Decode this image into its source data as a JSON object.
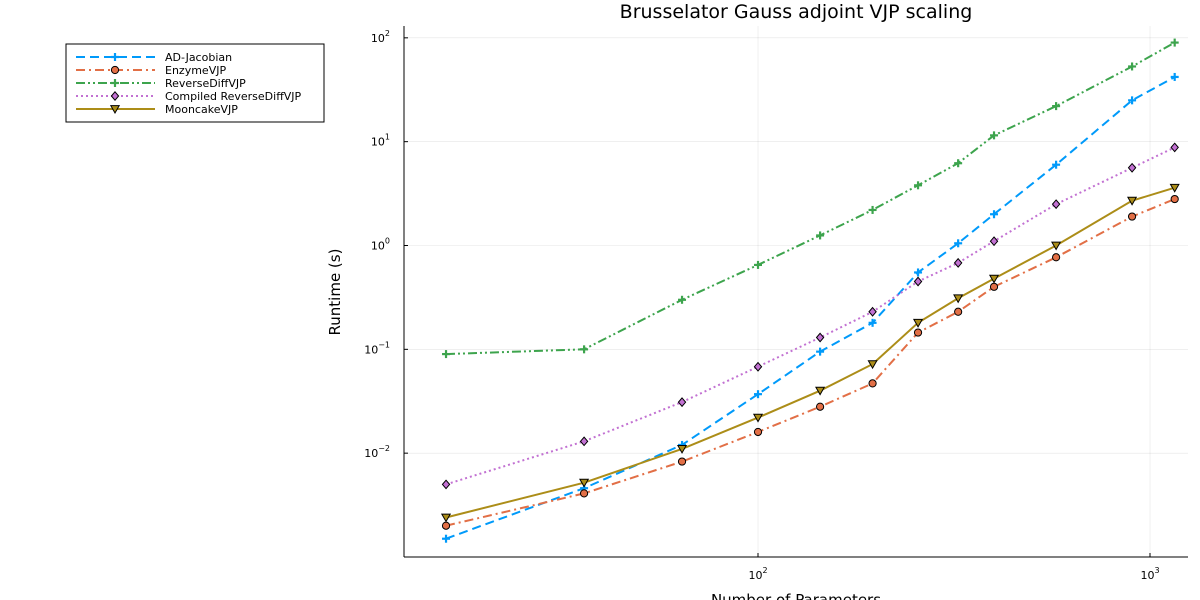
{
  "chart_data": {
    "type": "line",
    "title": "Brusselator Gauss adjoint VJP scaling",
    "xlabel": "Number of Parameters",
    "ylabel": "Runtime (s)",
    "xscale": "log",
    "yscale": "log",
    "xlim": [
      12.5,
      1250
    ],
    "ylim": [
      0.001,
      130
    ],
    "x_ticks": [
      {
        "value": 100,
        "base": "10",
        "exp": "2"
      },
      {
        "value": 1000,
        "base": "10",
        "exp": "3"
      }
    ],
    "y_ticks": [
      {
        "value": 0.01,
        "base": "10",
        "exp": "−2"
      },
      {
        "value": 0.1,
        "base": "10",
        "exp": "−1"
      },
      {
        "value": 1,
        "base": "10",
        "exp": "0"
      },
      {
        "value": 10,
        "base": "10",
        "exp": "1"
      },
      {
        "value": 100,
        "base": "10",
        "exp": "2"
      }
    ],
    "grid": true,
    "legend_position": "outer top-left",
    "x": [
      16,
      36,
      64,
      100,
      144,
      196,
      256,
      324,
      400,
      576,
      900,
      1156
    ],
    "series": [
      {
        "name": "AD-Jacobian",
        "color": "#009AFA",
        "dash": "dash",
        "marker": "cross",
        "values": [
          0.0015,
          0.0046,
          0.012,
          0.037,
          0.095,
          0.18,
          0.55,
          1.05,
          2.0,
          6.0,
          25,
          42
        ]
      },
      {
        "name": "EnzymeVJP",
        "color": "#E26F46",
        "dash": "dashdot",
        "marker": "circle",
        "values": [
          0.002,
          0.0041,
          0.0083,
          0.016,
          0.028,
          0.047,
          0.145,
          0.23,
          0.4,
          0.77,
          1.9,
          2.8
        ]
      },
      {
        "name": "ReverseDiffVJP",
        "color": "#3DA44D",
        "dash": "dashdotdot",
        "marker": "cross",
        "values": [
          0.09,
          0.1,
          0.3,
          0.65,
          1.25,
          2.2,
          3.8,
          6.2,
          11.5,
          22,
          53,
          90
        ]
      },
      {
        "name": "Compiled ReverseDiffVJP",
        "color": "#C271D2",
        "dash": "dot",
        "marker": "diamond",
        "values": [
          0.005,
          0.013,
          0.031,
          0.068,
          0.13,
          0.23,
          0.45,
          0.68,
          1.1,
          2.5,
          5.6,
          8.8
        ]
      },
      {
        "name": "MooncakeVJP",
        "color": "#AC8D18",
        "dash": "solid",
        "marker": "triangle-down",
        "values": [
          0.0024,
          0.0052,
          0.011,
          0.022,
          0.04,
          0.072,
          0.18,
          0.31,
          0.48,
          1.0,
          2.7,
          3.6
        ]
      }
    ]
  }
}
